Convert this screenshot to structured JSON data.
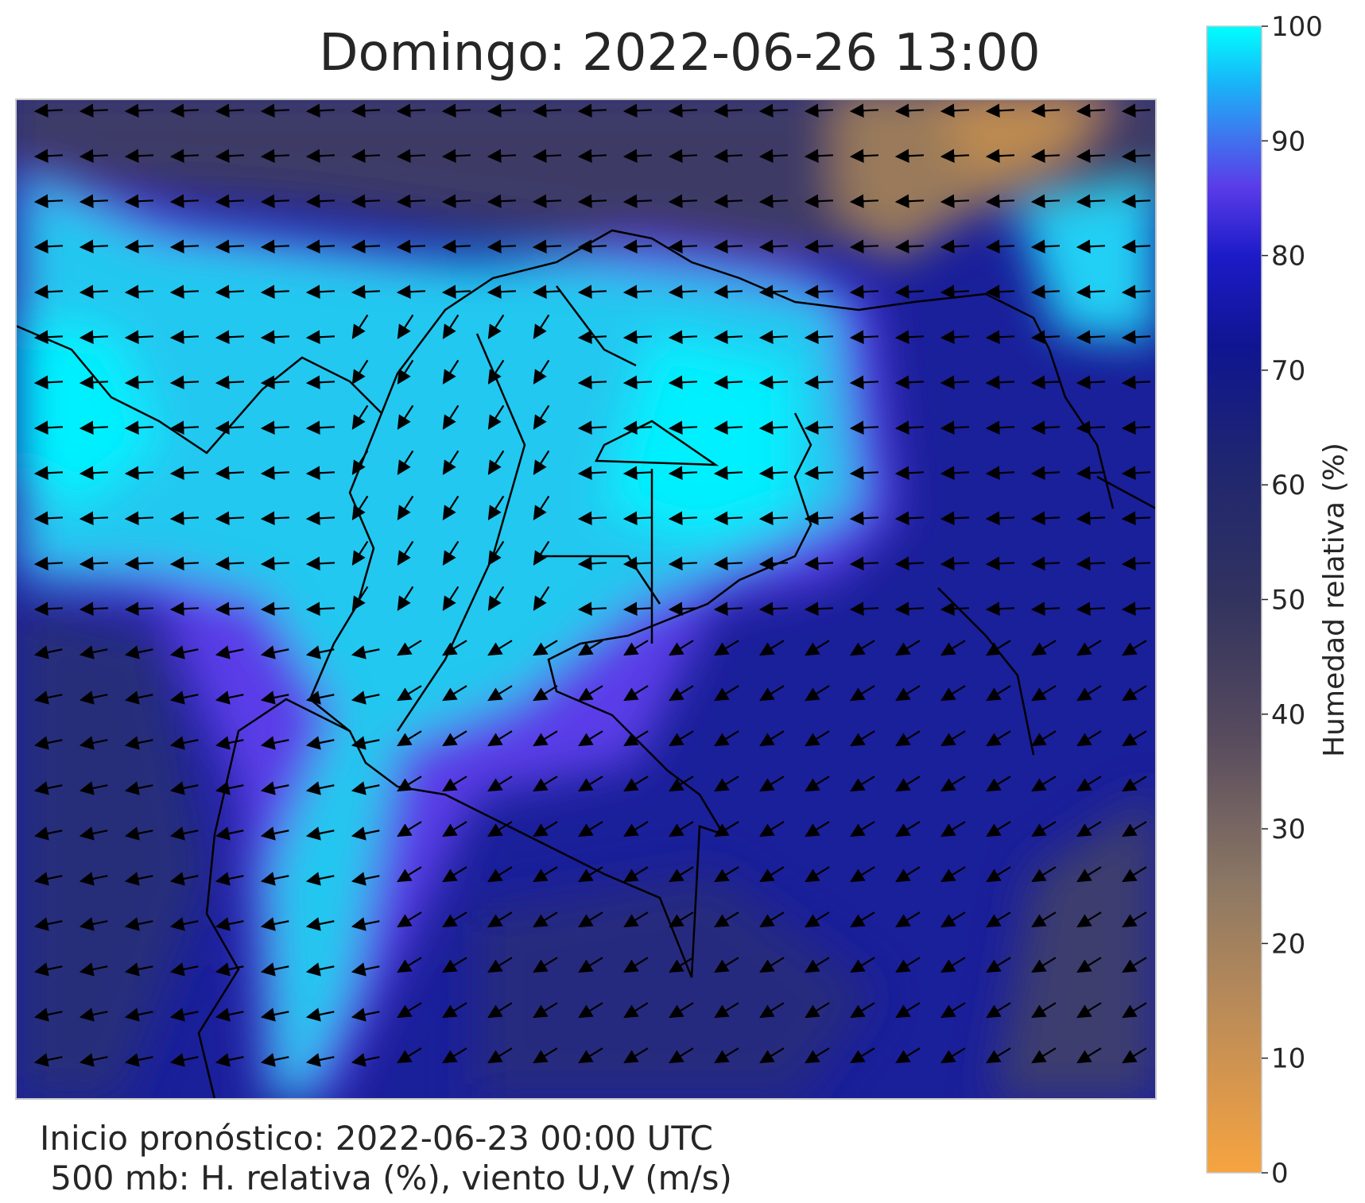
{
  "title": "Domingo: 2022-06-26 13:00",
  "footer": {
    "line1": "Inicio pronóstico: 2022-06-23 00:00 UTC",
    "line2": " 500 mb: H. relativa (%), viento U,V (m/s)"
  },
  "colorbar": {
    "label": "Humedad relativa (%)",
    "lim": [
      0,
      100
    ],
    "ticks": [
      0,
      10,
      20,
      30,
      40,
      50,
      60,
      70,
      80,
      90,
      100
    ]
  }
}
